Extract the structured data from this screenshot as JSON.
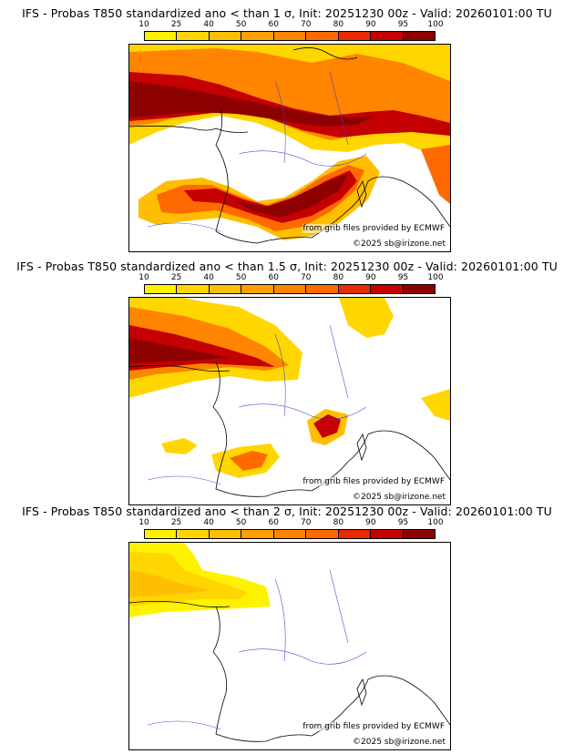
{
  "colorbar": {
    "ticks": [
      "10",
      "25",
      "40",
      "50",
      "60",
      "70",
      "80",
      "90",
      "95",
      "100"
    ],
    "colors": [
      "#fff200",
      "#ffd600",
      "#ffbf00",
      "#ffa000",
      "#ff8500",
      "#ff6a00",
      "#e82a00",
      "#c40000",
      "#8c0000"
    ]
  },
  "panels": [
    {
      "title": "IFS - Probas T850  standardized ano < than 1 σ, Init: 20251230 00z - Valid: 20260101:00 TU",
      "credit_source": "from grib files provided by ECMWF",
      "credit_copy": "©2025 sb@irizone.net"
    },
    {
      "title": "IFS - Probas T850  standardized ano < than 1.5 σ, Init: 20251230 00z - Valid: 20260101:00 TU",
      "credit_source": "from grib files provided by ECMWF",
      "credit_copy": "©2025 sb@irizone.net"
    },
    {
      "title": "IFS - Probas T850  standardized ano < than 2 σ, Init: 20251230 00z - Valid: 20260101:00 TU",
      "credit_source": "from grib files provided by ECMWF",
      "credit_copy": "©2025 sb@irizone.net"
    }
  ]
}
